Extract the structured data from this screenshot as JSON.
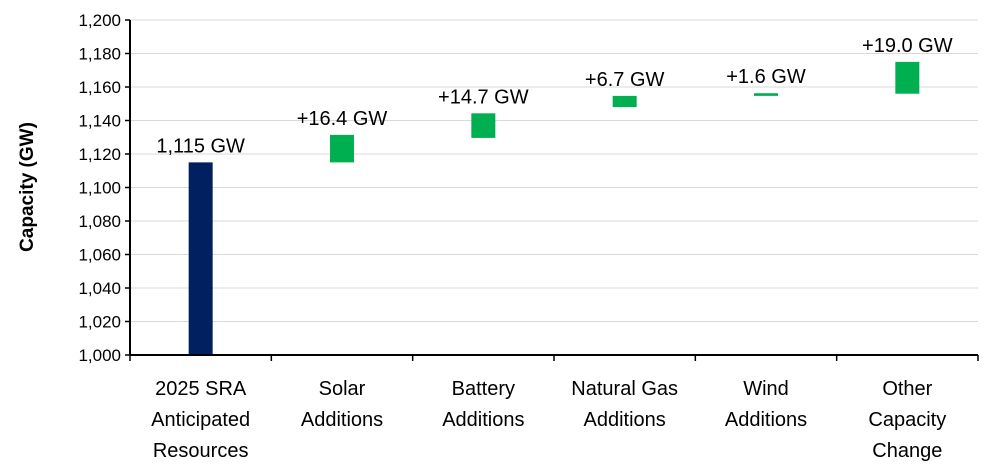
{
  "chart_data": {
    "type": "bar",
    "subtype": "waterfall",
    "ylabel": "Capacity (GW)",
    "ylim": [
      1000,
      1200
    ],
    "yticks": [
      "1,000",
      "1,020",
      "1,040",
      "1,060",
      "1,080",
      "1,100",
      "1,120",
      "1,140",
      "1,160",
      "1,180",
      "1,200"
    ],
    "grid": true,
    "categories": [
      "2025 SRA Anticipated Resources",
      "Solar Additions",
      "Battery Additions",
      "Natural Gas Additions",
      "Wind Additions",
      "Other Capacity Change"
    ],
    "category_lines": [
      [
        "2025 SRA",
        "Anticipated",
        "Resources"
      ],
      [
        "Solar",
        "Additions"
      ],
      [
        "Battery",
        "Additions"
      ],
      [
        "Natural Gas",
        "Additions"
      ],
      [
        "Wind",
        "Additions"
      ],
      [
        "Other",
        "Capacity",
        "Change"
      ]
    ],
    "bars": [
      {
        "kind": "total",
        "start": 1000,
        "end": 1115,
        "label": "1,115  GW",
        "color": "#002060"
      },
      {
        "kind": "increase",
        "start": 1115,
        "end": 1131.4,
        "label": "+16.4 GW",
        "color": "#00B050"
      },
      {
        "kind": "increase",
        "start": 1129.6,
        "end": 1144.3,
        "label": "+14.7 GW",
        "color": "#00B050"
      },
      {
        "kind": "increase",
        "start": 1148,
        "end": 1154.7,
        "label": "+6.7 GW",
        "color": "#00B050"
      },
      {
        "kind": "increase",
        "start": 1154.7,
        "end": 1156.3,
        "label": "+1.6 GW",
        "color": "#00B050"
      },
      {
        "kind": "increase",
        "start": 1156,
        "end": 1175,
        "label": "+19.0 GW",
        "color": "#00B050"
      }
    ]
  }
}
